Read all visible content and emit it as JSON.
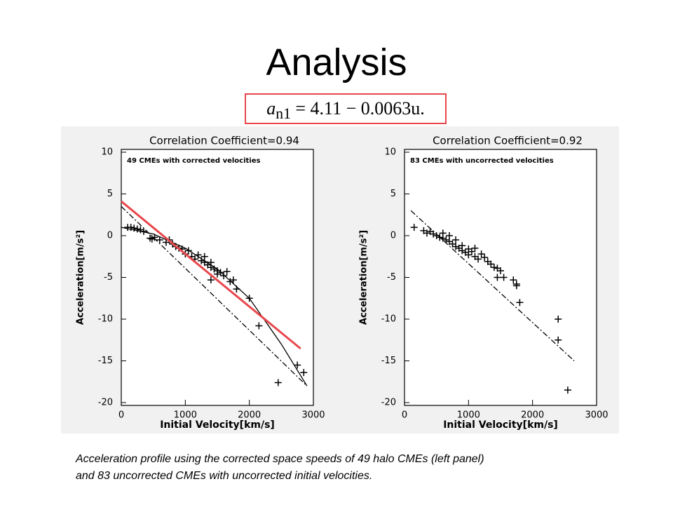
{
  "title": "Analysis",
  "formula": {
    "lhs": "a",
    "sub": "n1",
    "rhs": "= 4.11 − 0.0063u."
  },
  "caption": [
    "Acceleration profile using the corrected space speeds of 49 halo CMEs (left panel)",
    "and 83 uncorrected CMEs with uncorrected initial velocities."
  ],
  "chart_data": [
    {
      "type": "scatter",
      "title": "Correlation Coefficient=0.94",
      "annotation": "49 CMEs with corrected velocities",
      "x_label": "Initial Velocity[km/s]",
      "y_label": "Acceleration[m/s²]",
      "xlim": [
        0,
        3000
      ],
      "ylim": [
        -20,
        10
      ],
      "xticks": [
        0,
        1000,
        2000,
        3000
      ],
      "yticks": [
        -20,
        -15,
        -10,
        -5,
        0,
        5,
        10
      ],
      "series": [
        {
          "color": "#000000",
          "marker": "plus",
          "x": [
            100,
            150,
            200,
            250,
            300,
            350,
            450,
            480,
            520,
            600,
            700,
            750,
            800,
            850,
            900,
            950,
            1000,
            1050,
            1100,
            1150,
            1200,
            1250,
            1300,
            1300,
            1350,
            1400,
            1400,
            1450,
            1500,
            1500,
            1550,
            1600,
            1650,
            1700,
            1750,
            1400,
            1800,
            2000,
            2150,
            2450,
            2750,
            2850
          ],
          "values": [
            1,
            1,
            0.9,
            0.8,
            0.7,
            0.5,
            -0.3,
            -0.4,
            -0.2,
            -0.5,
            -0.8,
            -0.5,
            -1,
            -1.3,
            -1.5,
            -1.6,
            -2.2,
            -1.8,
            -2.5,
            -2.8,
            -2.3,
            -3,
            -3.2,
            -2.5,
            -3.5,
            -3.8,
            -3.2,
            -4,
            -4.2,
            -4.6,
            -4.4,
            -4.8,
            -4.3,
            -5.5,
            -5.3,
            -5.3,
            -6.4,
            -7.5,
            -10.8,
            -17.6,
            -15.5,
            -16.4
          ]
        },
        {
          "color": "#000000",
          "style": "dashdot",
          "x": [
            0,
            2900
          ],
          "values": [
            3.5,
            -18
          ]
        },
        {
          "color": "#000000",
          "style": "solid",
          "x": [
            0,
            500,
            1000,
            1500,
            2000,
            2500,
            2900
          ],
          "values": [
            1,
            0.2,
            -1.5,
            -4,
            -7.5,
            -13,
            -18
          ]
        },
        {
          "color": "#e8474b",
          "style": "fit",
          "x": [
            0,
            2800
          ],
          "values": [
            4.11,
            -13.53
          ]
        }
      ]
    },
    {
      "type": "scatter",
      "title": "Correlation Coefficient=0.92",
      "annotation": "83 CMEs with uncorrected velocities",
      "x_label": "Initial Velocity[km/s]",
      "y_label": "Acceleration[m/s²]",
      "xlim": [
        0,
        3000
      ],
      "ylim": [
        -20,
        10
      ],
      "xticks": [
        0,
        1000,
        2000,
        3000
      ],
      "yticks": [
        -20,
        -15,
        -10,
        -5,
        0,
        5,
        10
      ],
      "series": [
        {
          "color": "#000000",
          "marker": "plus",
          "x": [
            150,
            300,
            350,
            400,
            450,
            500,
            550,
            600,
            600,
            650,
            700,
            700,
            750,
            800,
            800,
            850,
            900,
            900,
            950,
            1000,
            1000,
            1050,
            1100,
            1100,
            1150,
            1200,
            1250,
            1300,
            1350,
            1400,
            1450,
            1500,
            1550,
            1450,
            1700,
            1750,
            1750,
            1800,
            2400,
            2400,
            2550
          ],
          "values": [
            1,
            0.6,
            0.3,
            0.5,
            0.2,
            0,
            -0.2,
            0.3,
            -0.3,
            -0.5,
            0,
            -0.7,
            -1,
            -0.5,
            -1.3,
            -1.5,
            -1.2,
            -1.8,
            -2,
            -1.6,
            -2.3,
            -1.9,
            -2.5,
            -1.5,
            -2.8,
            -2.2,
            -2.6,
            -3.1,
            -3.4,
            -3.8,
            -3.9,
            -4.2,
            -5,
            -5,
            -5.3,
            -5.8,
            -6,
            -8,
            -10,
            -12.5,
            -18.5
          ]
        },
        {
          "color": "#000000",
          "style": "dashdot",
          "x": [
            100,
            2650
          ],
          "values": [
            3,
            -15
          ]
        }
      ]
    }
  ]
}
